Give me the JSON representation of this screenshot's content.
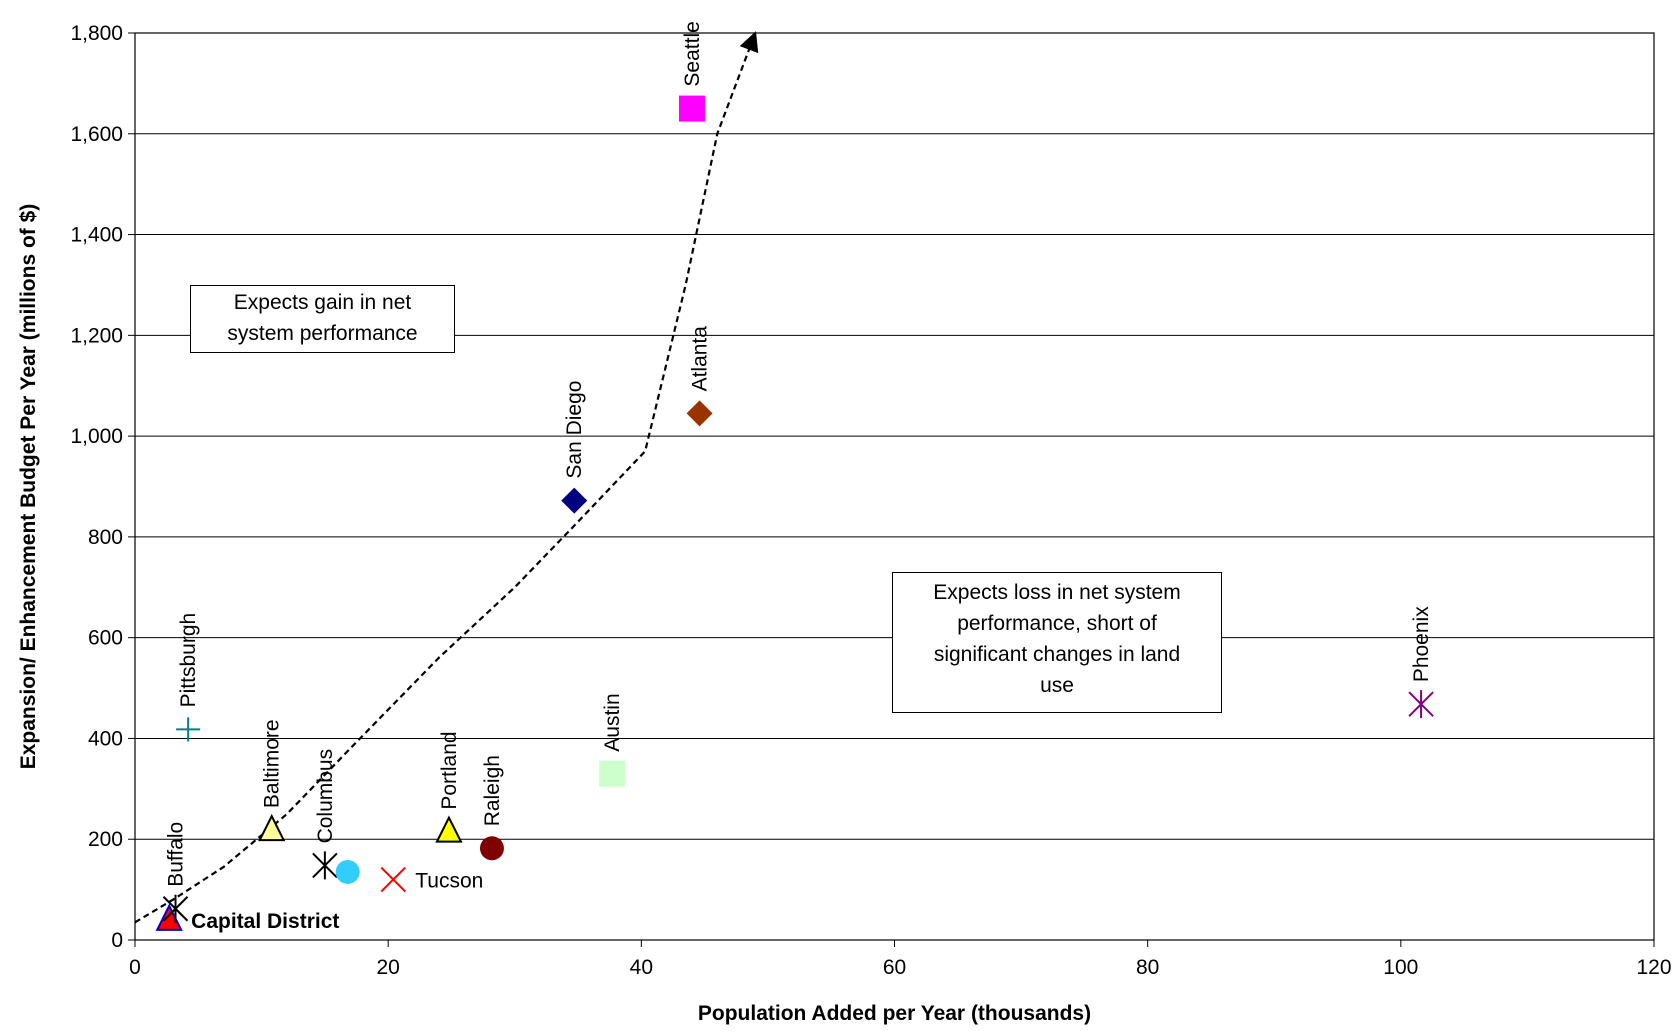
{
  "chart_data": {
    "type": "scatter",
    "xlabel": "Population Added per Year (thousands)",
    "ylabel": "Expansion/ Enhancement Budget Per Year (millions of $)",
    "xlim": [
      0,
      120
    ],
    "ylim": [
      0,
      1800
    ],
    "xticks": [
      0,
      20,
      40,
      60,
      80,
      100,
      120
    ],
    "yticks": [
      0,
      200,
      400,
      600,
      800,
      1000,
      1200,
      1400,
      1600,
      1800
    ],
    "xtick_labels": [
      "0",
      "20",
      "40",
      "60",
      "80",
      "100",
      "120"
    ],
    "ytick_labels": [
      "0",
      "200",
      "400",
      "600",
      "800",
      "1,000",
      "1,200",
      "1,400",
      "1,600",
      "1,800"
    ],
    "grid": "horizontal",
    "points": [
      {
        "label": "Capital District",
        "x": 2.7,
        "y": 40,
        "marker": "triangle",
        "color": "#ff0000",
        "edge": "#0000cc",
        "label_pos": "right",
        "bold": true
      },
      {
        "label": "Buffalo",
        "x": 3.2,
        "y": 62,
        "marker": "x-star",
        "color": "#000000",
        "label_pos": "above"
      },
      {
        "label": "Pittsburgh",
        "x": 4.2,
        "y": 418,
        "marker": "plus",
        "color": "#008080",
        "label_pos": "above"
      },
      {
        "label": "Baltimore",
        "x": 10.8,
        "y": 218,
        "marker": "triangle",
        "color": "#ffff99",
        "edge": "#000000",
        "label_pos": "above"
      },
      {
        "label": "Columbus",
        "x": 15.0,
        "y": 148,
        "marker": "x-star",
        "color": "#000000",
        "label_pos": "above"
      },
      {
        "label": "",
        "x": 16.8,
        "y": 135,
        "marker": "circle",
        "color": "#33ccff"
      },
      {
        "label": "Tucson",
        "x": 20.4,
        "y": 120,
        "marker": "x",
        "color": "#ff0000",
        "label_pos": "right"
      },
      {
        "label": "Portland",
        "x": 24.8,
        "y": 215,
        "marker": "triangle",
        "color": "#ffff00",
        "edge": "#000000",
        "label_pos": "above"
      },
      {
        "label": "Raleigh",
        "x": 28.2,
        "y": 182,
        "marker": "circle",
        "color": "#800000",
        "label_pos": "above"
      },
      {
        "label": "San Diego",
        "x": 34.7,
        "y": 872,
        "marker": "diamond",
        "color": "#000080",
        "label_pos": "above"
      },
      {
        "label": "Austin",
        "x": 37.7,
        "y": 330,
        "marker": "square",
        "color": "#ccffcc",
        "label_pos": "above"
      },
      {
        "label": "Seattle",
        "x": 44.0,
        "y": 1650,
        "marker": "square",
        "color": "#ff00ff",
        "label_pos": "above"
      },
      {
        "label": "Atlanta",
        "x": 44.6,
        "y": 1045,
        "marker": "diamond",
        "color": "#993300",
        "label_pos": "above"
      },
      {
        "label": "Phoenix",
        "x": 101.6,
        "y": 468,
        "marker": "x-star",
        "color": "#800080",
        "label_pos": "above"
      }
    ],
    "trend_line": {
      "style": "dashed",
      "arrow": true,
      "points": [
        [
          0,
          35
        ],
        [
          3,
          80
        ],
        [
          7,
          145
        ],
        [
          12,
          250
        ],
        [
          17,
          380
        ],
        [
          24,
          560
        ],
        [
          30,
          700
        ],
        [
          35,
          830
        ],
        [
          40.3,
          970
        ],
        [
          43.5,
          1300
        ],
        [
          46,
          1600
        ],
        [
          49,
          1800
        ]
      ]
    },
    "annotations": [
      {
        "text": "Expects gain in net system performance",
        "lines": [
          "Expects gain in net",
          "system performance"
        ]
      },
      {
        "text": "Expects loss in net system performance, short of significant changes in land use",
        "lines": [
          "Expects loss in net system",
          "performance, short of",
          "significant changes in land",
          "use"
        ]
      }
    ]
  }
}
